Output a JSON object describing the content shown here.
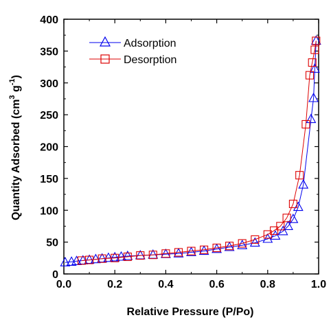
{
  "chart_data": {
    "type": "line",
    "xlabel": "Relative Pressure (P/Po)",
    "ylabel_parts": [
      "Quantity Adsorbed (cm",
      "3",
      " g",
      "-1",
      ")"
    ],
    "xlim": [
      0.0,
      1.0
    ],
    "ylim": [
      0,
      400
    ],
    "x_ticks": [
      0.0,
      0.2,
      0.4,
      0.6,
      0.8,
      1.0
    ],
    "x_tick_labels": [
      "0.0",
      "0.2",
      "0.4",
      "0.6",
      "0.8",
      "1.0"
    ],
    "y_ticks": [
      0,
      50,
      100,
      150,
      200,
      250,
      300,
      350,
      400
    ],
    "y_tick_labels": [
      "0",
      "50",
      "100",
      "150",
      "200",
      "250",
      "300",
      "350",
      "400"
    ],
    "grid": false,
    "legend_position": "top-left",
    "series": [
      {
        "name": "Adsorption",
        "color": "#0000ee",
        "marker": "triangle",
        "points": [
          [
            0.005,
            18
          ],
          [
            0.03,
            19
          ],
          [
            0.05,
            20
          ],
          [
            0.075,
            21
          ],
          [
            0.1,
            22
          ],
          [
            0.125,
            23
          ],
          [
            0.15,
            24
          ],
          [
            0.175,
            25
          ],
          [
            0.2,
            26
          ],
          [
            0.225,
            27
          ],
          [
            0.25,
            28
          ],
          [
            0.3,
            29
          ],
          [
            0.35,
            30
          ],
          [
            0.4,
            31
          ],
          [
            0.45,
            32
          ],
          [
            0.5,
            34
          ],
          [
            0.55,
            36
          ],
          [
            0.6,
            39
          ],
          [
            0.65,
            42
          ],
          [
            0.7,
            45
          ],
          [
            0.75,
            49
          ],
          [
            0.8,
            55
          ],
          [
            0.83,
            60
          ],
          [
            0.86,
            67
          ],
          [
            0.88,
            75
          ],
          [
            0.9,
            86
          ],
          [
            0.92,
            105
          ],
          [
            0.94,
            140
          ],
          [
            0.97,
            243
          ],
          [
            0.98,
            276
          ],
          [
            0.985,
            322
          ],
          [
            0.99,
            366
          ]
        ]
      },
      {
        "name": "Desorption",
        "color": "#dd0000",
        "marker": "square",
        "points": [
          [
            0.99,
            366
          ],
          [
            0.985,
            352
          ],
          [
            0.975,
            332
          ],
          [
            0.965,
            312
          ],
          [
            0.95,
            235
          ],
          [
            0.925,
            155
          ],
          [
            0.9,
            110
          ],
          [
            0.875,
            88
          ],
          [
            0.85,
            75
          ],
          [
            0.825,
            68
          ],
          [
            0.8,
            62
          ],
          [
            0.75,
            54
          ],
          [
            0.7,
            48
          ],
          [
            0.65,
            44
          ],
          [
            0.6,
            41
          ],
          [
            0.55,
            38
          ],
          [
            0.5,
            36
          ],
          [
            0.45,
            34
          ],
          [
            0.4,
            32
          ],
          [
            0.35,
            30
          ],
          [
            0.3,
            29
          ],
          [
            0.25,
            27
          ],
          [
            0.2,
            25
          ],
          [
            0.15,
            24
          ],
          [
            0.1,
            22
          ],
          [
            0.07,
            21
          ]
        ]
      }
    ]
  }
}
